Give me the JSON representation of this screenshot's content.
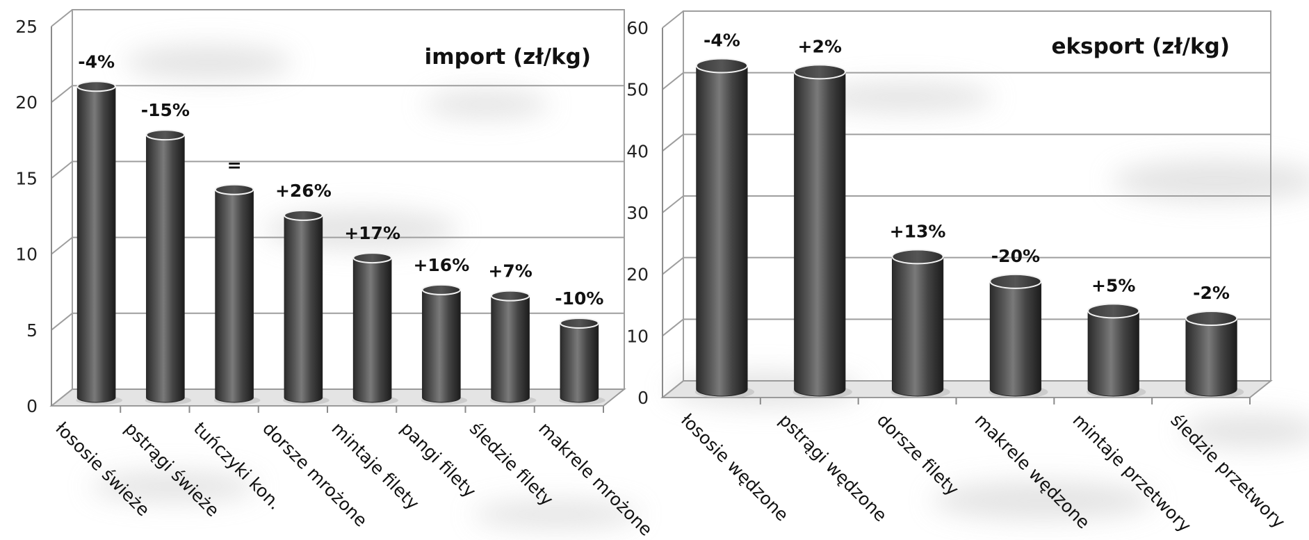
{
  "chart_data": [
    {
      "type": "bar",
      "title": "import (zł/kg)",
      "ylim": [
        0,
        25
      ],
      "yticks": [
        0,
        5,
        10,
        15,
        20,
        25
      ],
      "grid": true,
      "categories": [
        "łososie świeże",
        "pstrągi świeże",
        "tuńczyki kon.",
        "dorsze mrożone",
        "mintaje filety",
        "pangi filety",
        "śledzie filety",
        "makrele mrożone"
      ],
      "values": [
        20.5,
        17.3,
        13.7,
        12.0,
        9.2,
        7.1,
        6.7,
        4.9
      ],
      "labels": [
        "-4%",
        "-15%",
        "=",
        "+26%",
        "+17%",
        "+16%",
        "+7%",
        "-10%"
      ]
    },
    {
      "type": "bar",
      "title": "eksport (zł/kg)",
      "ylim": [
        0,
        60
      ],
      "yticks": [
        0,
        10,
        20,
        30,
        40,
        50,
        60
      ],
      "grid": true,
      "categories": [
        "łososie wędzone",
        "pstrągi wędzone",
        "dorsze filety",
        "makrele wędzone",
        "mintaje przetwory",
        "śledzie przetwory"
      ],
      "values": [
        52.5,
        51.5,
        21.5,
        17.5,
        12.7,
        11.5
      ],
      "labels": [
        "-4%",
        "+2%",
        "+13%",
        "-20%",
        "+5%",
        "-2%"
      ]
    }
  ]
}
